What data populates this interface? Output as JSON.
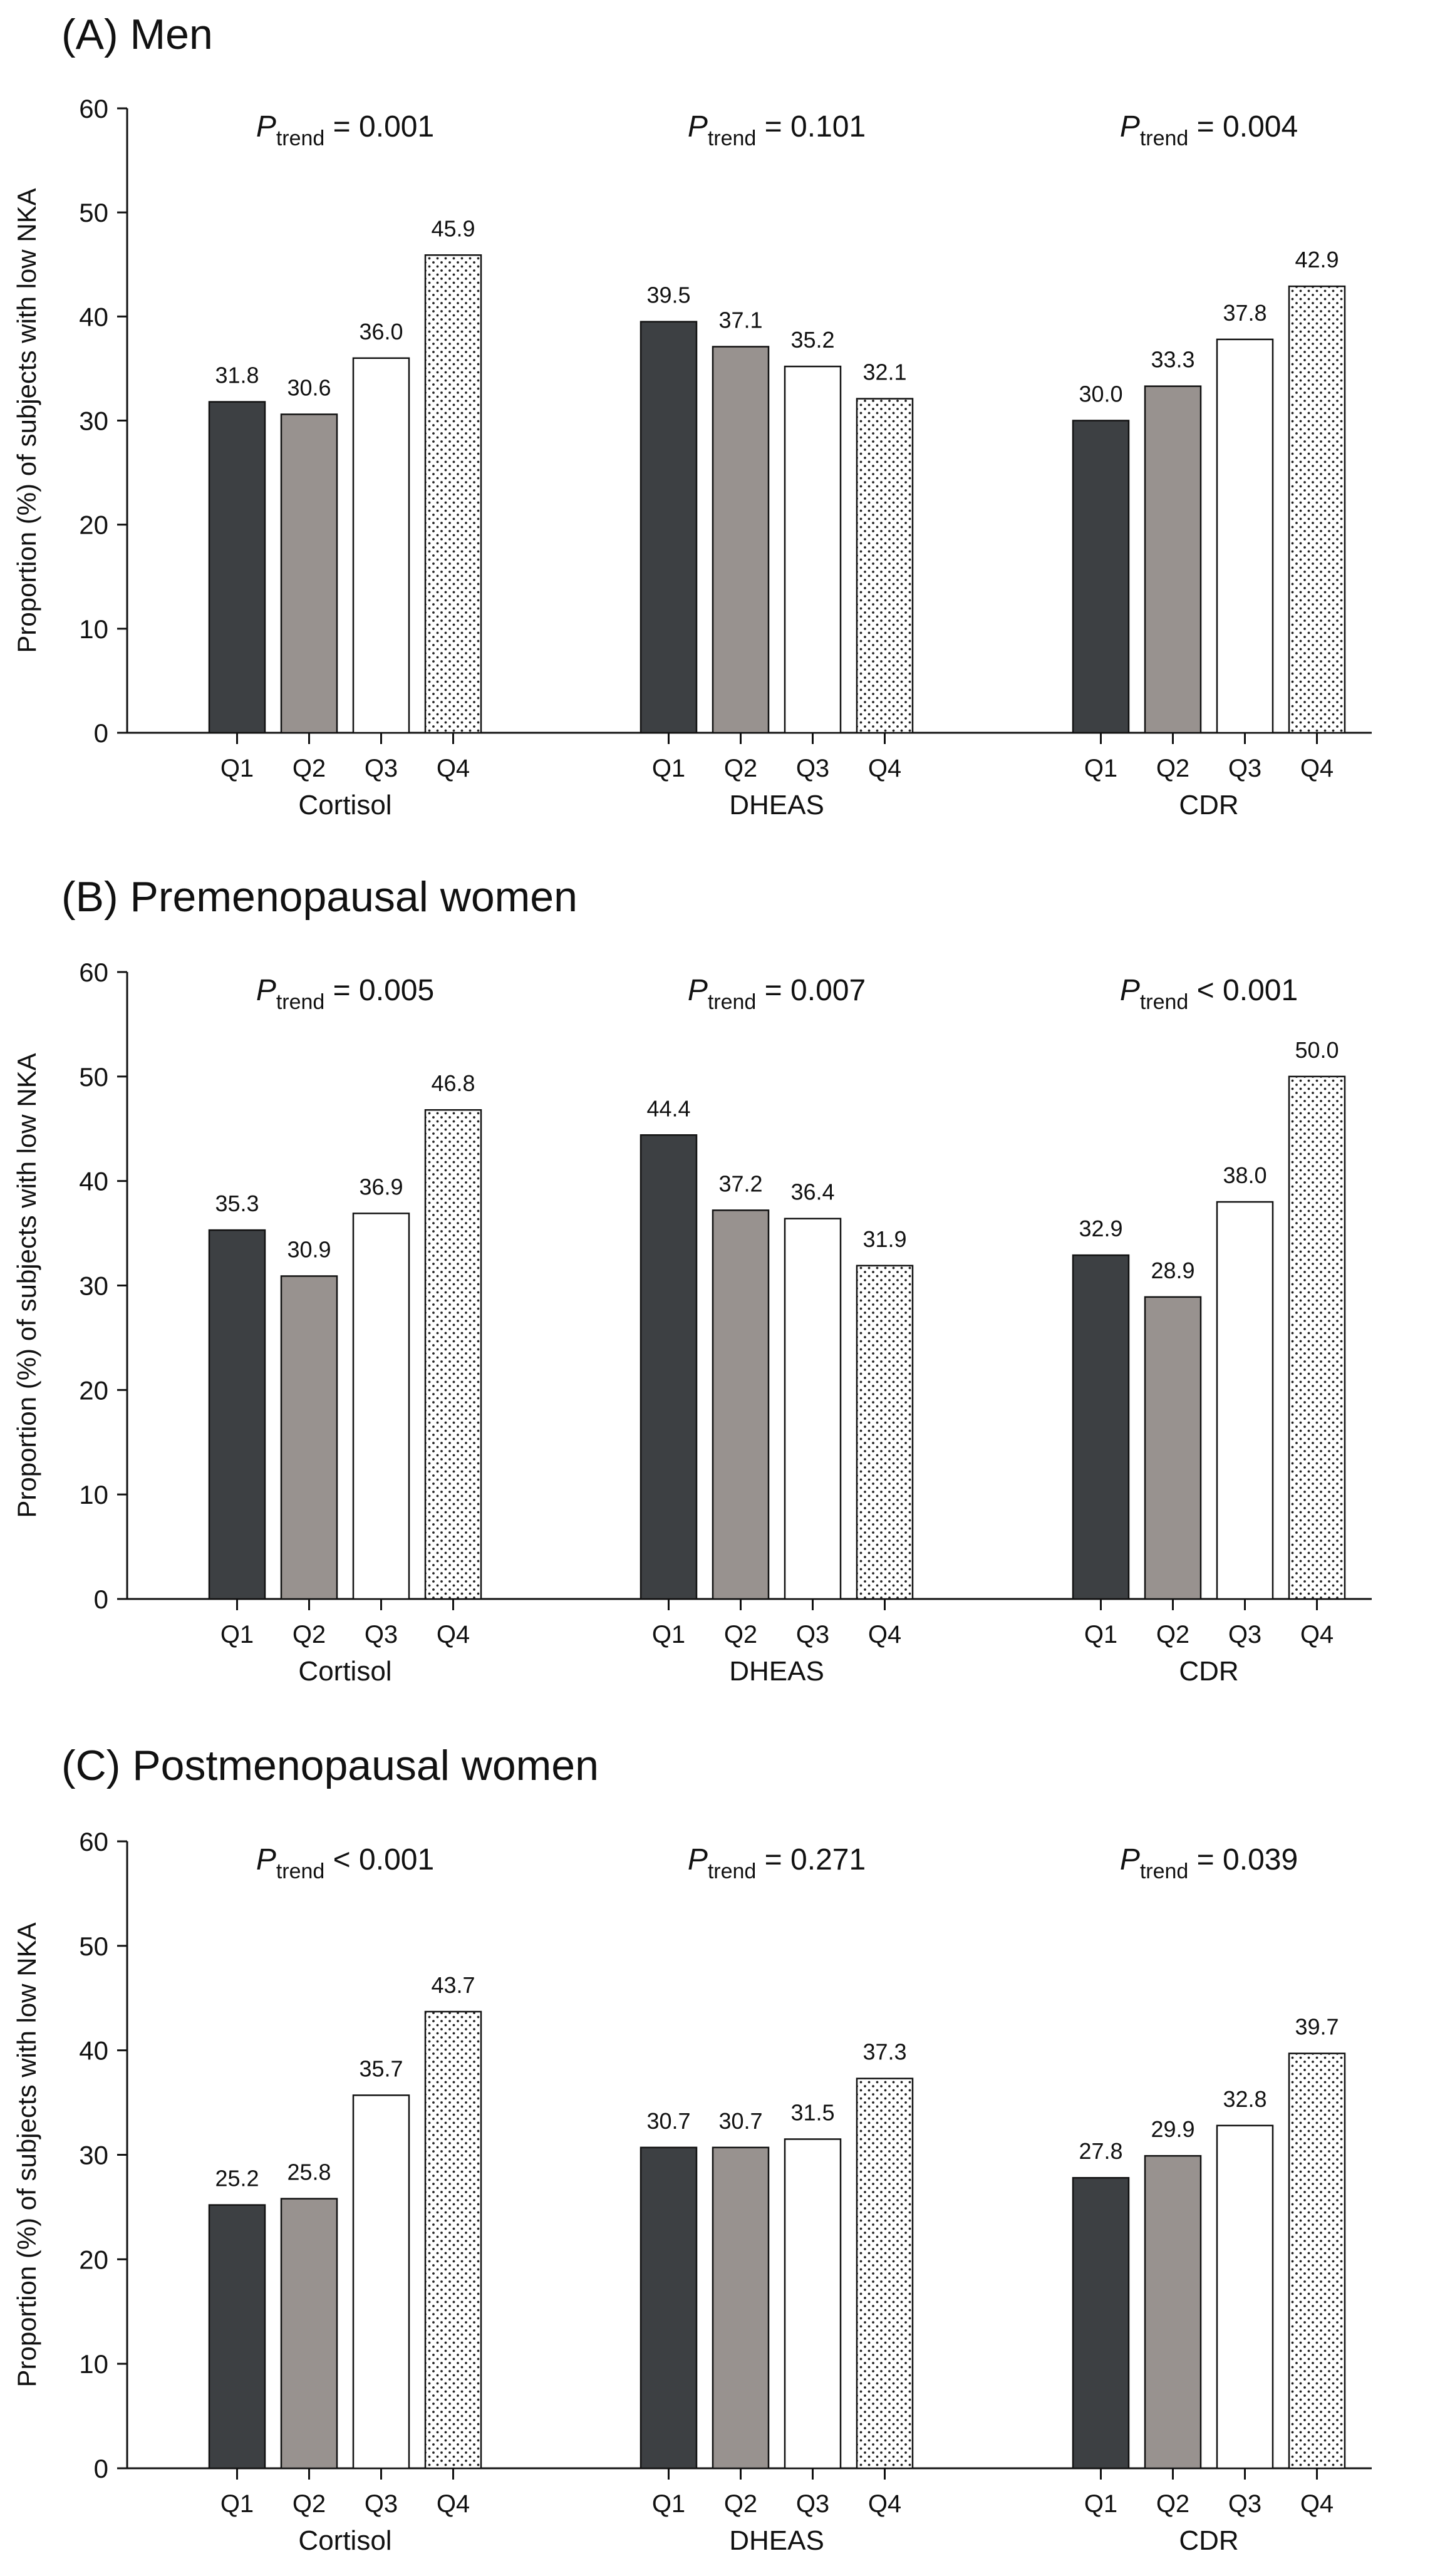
{
  "chart_data": [
    {
      "type": "bar",
      "title": "(A) Men",
      "ylabel": "Proportion (%) of subjects with low NKA",
      "ylim": [
        0,
        60
      ],
      "yticks": [
        0,
        10,
        20,
        30,
        40,
        50,
        60
      ],
      "categories": [
        "Q1",
        "Q2",
        "Q3",
        "Q4"
      ],
      "groups": [
        {
          "name": "Cortisol",
          "p_prefix": "P",
          "p_sub": "trend",
          "p_text": " = 0.001",
          "values": [
            31.8,
            30.6,
            36.0,
            45.9
          ],
          "labels": [
            "31.8",
            "30.6",
            "36.0",
            "45.9"
          ]
        },
        {
          "name": "DHEAS",
          "p_prefix": "P",
          "p_sub": "trend",
          "p_text": " = 0.101",
          "values": [
            39.5,
            37.1,
            35.2,
            32.1
          ],
          "labels": [
            "39.5",
            "37.1",
            "35.2",
            "32.1"
          ]
        },
        {
          "name": "CDR",
          "p_prefix": "P",
          "p_sub": "trend",
          "p_text": " = 0.004",
          "values": [
            30.0,
            33.3,
            37.8,
            42.9
          ],
          "labels": [
            "30.0",
            "33.3",
            "37.8",
            "42.9"
          ]
        }
      ]
    },
    {
      "type": "bar",
      "title": "(B) Premenopausal women",
      "ylabel": "Proportion (%) of subjects with low NKA",
      "ylim": [
        0,
        60
      ],
      "yticks": [
        0,
        10,
        20,
        30,
        40,
        50,
        60
      ],
      "categories": [
        "Q1",
        "Q2",
        "Q3",
        "Q4"
      ],
      "groups": [
        {
          "name": "Cortisol",
          "p_prefix": "P",
          "p_sub": "trend",
          "p_text": " = 0.005",
          "values": [
            35.3,
            30.9,
            36.9,
            46.8
          ],
          "labels": [
            "35.3",
            "30.9",
            "36.9",
            "46.8"
          ]
        },
        {
          "name": "DHEAS",
          "p_prefix": "P",
          "p_sub": "trend",
          "p_text": " = 0.007",
          "values": [
            44.4,
            37.2,
            36.4,
            31.9
          ],
          "labels": [
            "44.4",
            "37.2",
            "36.4",
            "31.9"
          ]
        },
        {
          "name": "CDR",
          "p_prefix": "P",
          "p_sub": "trend",
          "p_text": " < 0.001",
          "values": [
            32.9,
            28.9,
            38.0,
            50.0
          ],
          "labels": [
            "32.9",
            "28.9",
            "38.0",
            "50.0"
          ]
        }
      ]
    },
    {
      "type": "bar",
      "title": "(C) Postmenopausal women",
      "ylabel": "Proportion (%) of subjects with low NKA",
      "ylim": [
        0,
        60
      ],
      "yticks": [
        0,
        10,
        20,
        30,
        40,
        50,
        60
      ],
      "categories": [
        "Q1",
        "Q2",
        "Q3",
        "Q4"
      ],
      "groups": [
        {
          "name": "Cortisol",
          "p_prefix": "P",
          "p_sub": "trend",
          "p_text": " < 0.001",
          "values": [
            25.2,
            25.8,
            35.7,
            43.7
          ],
          "labels": [
            "25.2",
            "25.8",
            "35.7",
            "43.7"
          ]
        },
        {
          "name": "DHEAS",
          "p_prefix": "P",
          "p_sub": "trend",
          "p_text": " = 0.271",
          "values": [
            30.7,
            30.7,
            31.5,
            37.3
          ],
          "labels": [
            "30.7",
            "30.7",
            "31.5",
            "37.3"
          ]
        },
        {
          "name": "CDR",
          "p_prefix": "P",
          "p_sub": "trend",
          "p_text": " = 0.039",
          "values": [
            27.8,
            29.9,
            32.8,
            39.7
          ],
          "labels": [
            "27.8",
            "29.9",
            "32.8",
            "39.7"
          ]
        }
      ]
    }
  ],
  "colors": {
    "q1": "#3d4043",
    "q2": "#98928f",
    "q3": "#ffffff",
    "q4_dots": "#222222",
    "axis": "#111111"
  }
}
